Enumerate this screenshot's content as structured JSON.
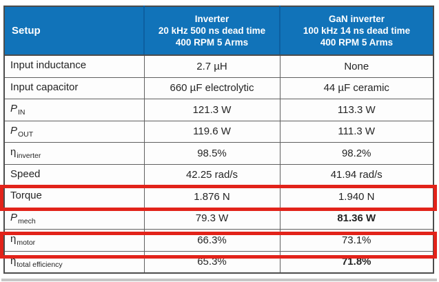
{
  "colors": {
    "header_bg": "#1173b9",
    "header_text": "#ffffff",
    "header_divider": "#0d5fa0",
    "highlight_red": "#e2231a",
    "border_gray": "#5f5f5f"
  },
  "table": {
    "header": {
      "setup": "Setup",
      "inverter_col": [
        "Inverter",
        "20 kHz 500 ns dead time",
        "400 RPM 5 Arms"
      ],
      "gan_col": [
        "GaN inverter",
        "100 kHz 14 ns dead time",
        "400 RPM 5 Arms"
      ]
    },
    "rows": [
      {
        "label": "Input inductance",
        "sub": "",
        "inverter": "2.7 µH",
        "gan": "None"
      },
      {
        "label": "Input capacitor",
        "sub": "",
        "inverter": "660 µF electrolytic",
        "gan": "44 µF ceramic"
      },
      {
        "label": "P",
        "sub": "IN",
        "inverter": "121.3 W",
        "gan": "113.3 W"
      },
      {
        "label": "P",
        "sub": "OUT",
        "inverter": "119.6 W",
        "gan": "111.3 W"
      },
      {
        "label": "η",
        "sub": "inverter",
        "inverter": "98.5%",
        "gan": "98.2%"
      },
      {
        "label": "Speed",
        "sub": "",
        "inverter": "42.25 rad/s",
        "gan": "41.94 rad/s"
      },
      {
        "label": "Torque",
        "sub": "",
        "inverter": "1.876 N",
        "gan": "1.940 N"
      },
      {
        "label": "P",
        "sub": "mech",
        "inverter": "79.3 W",
        "gan": "81.36 W"
      },
      {
        "label": "η",
        "sub": "motor",
        "inverter": "66.3%",
        "gan": "73.1%"
      },
      {
        "label": "η",
        "sub": "total efficiency",
        "inverter": "65.3%",
        "gan": "71.8%"
      }
    ],
    "highlighted_rows": [
      "Torque",
      "η motor"
    ]
  }
}
